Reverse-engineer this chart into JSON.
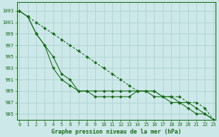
{
  "x": [
    0,
    1,
    2,
    3,
    4,
    5,
    6,
    7,
    8,
    9,
    10,
    11,
    12,
    13,
    14,
    15,
    16,
    17,
    18,
    19,
    20,
    21,
    22,
    23
  ],
  "line1": [
    1003,
    1002,
    999,
    997,
    995,
    992,
    991,
    989,
    989,
    988,
    988,
    988,
    988,
    988,
    989,
    989,
    989,
    988,
    987,
    987,
    986,
    985,
    985,
    984
  ],
  "line2": [
    1003,
    1002,
    999,
    997,
    993,
    991,
    990,
    989,
    989,
    989,
    989,
    989,
    989,
    989,
    989,
    989,
    988,
    988,
    988,
    987,
    987,
    986,
    985,
    984
  ],
  "line3": [
    1003,
    1002,
    1001,
    1000,
    999,
    998,
    997,
    996,
    995,
    994,
    993,
    992,
    991,
    990,
    989,
    989,
    989,
    988,
    988,
    988,
    987,
    987,
    986,
    984
  ],
  "ylabel_ticks": [
    985,
    987,
    989,
    991,
    993,
    995,
    997,
    999,
    1001,
    1003
  ],
  "xlabel_ticks": [
    0,
    1,
    2,
    3,
    4,
    5,
    6,
    7,
    8,
    9,
    10,
    11,
    12,
    13,
    14,
    15,
    16,
    17,
    18,
    19,
    20,
    21,
    22,
    23
  ],
  "xlabel": "Graphe pression niveau de la mer (hPa)",
  "bg_color": "#cce8e8",
  "grid_color": "#aacccc",
  "line_color": "#1a6b1a",
  "marker": "D",
  "marker_size": 2.0,
  "linewidth": 0.8,
  "ylim": [
    984.0,
    1004.5
  ],
  "xlim": [
    -0.3,
    23.3
  ],
  "tick_fontsize": 5.0,
  "xlabel_fontsize": 6.0
}
